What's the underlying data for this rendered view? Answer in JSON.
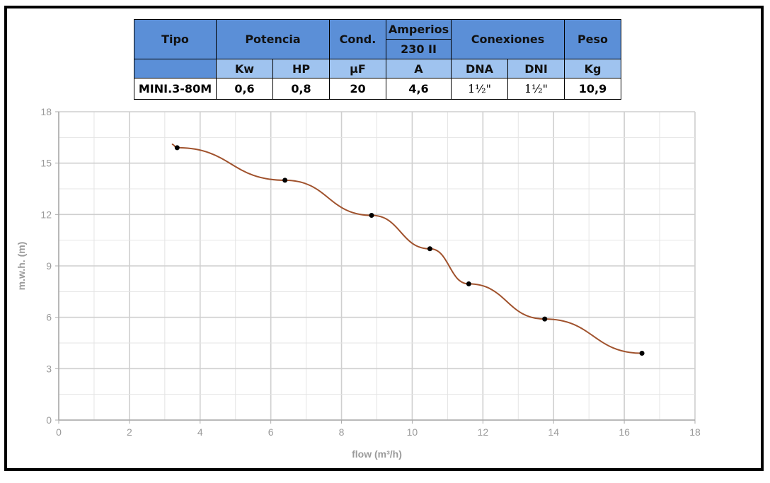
{
  "spec_table": {
    "headers": {
      "tipo": "Tipo",
      "potencia": "Potencia",
      "cond": "Cond.",
      "amperios": "Amperios",
      "amperios_sub": "230 II",
      "conexiones": "Conexiones",
      "peso": "Peso"
    },
    "units": {
      "kw": "Kw",
      "hp": "HP",
      "uf": "µF",
      "a": "A",
      "dna": "DNA",
      "dni": "DNI",
      "kg": "Kg"
    },
    "row": {
      "model": "MINI.3-80M",
      "kw": "0,6",
      "hp": "0,8",
      "uf": "20",
      "a": "4,6",
      "dna": "1½\"",
      "dni": "1½\"",
      "kg": "10,9"
    }
  },
  "chart_data": {
    "type": "line",
    "xlabel": "flow (m³/h)",
    "ylabel": "m.w.h. (m)",
    "xlim": [
      0,
      18
    ],
    "ylim": [
      0,
      18
    ],
    "xticks": [
      0,
      2,
      4,
      6,
      8,
      10,
      12,
      14,
      16,
      18
    ],
    "yticks": [
      0,
      3,
      6,
      9,
      12,
      15,
      18
    ],
    "grid": true,
    "line_color": "#a0522d",
    "curve_start": {
      "x": 3.2,
      "y": 16.1
    },
    "points": [
      {
        "x": 3.35,
        "y": 15.9
      },
      {
        "x": 6.4,
        "y": 14.0
      },
      {
        "x": 8.85,
        "y": 11.95
      },
      {
        "x": 10.5,
        "y": 10.0
      },
      {
        "x": 11.6,
        "y": 7.95
      },
      {
        "x": 13.75,
        "y": 5.9
      },
      {
        "x": 16.5,
        "y": 3.9
      }
    ]
  }
}
